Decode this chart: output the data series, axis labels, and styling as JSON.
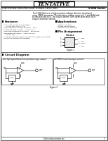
{
  "bg_color": "#ffffff",
  "header_box_text": "TENTATIVE",
  "top_left_text": "LOW-VOLTAGE HIGH-PRECISION VOLTAGE DETECTORS",
  "top_right_text": "S-808 Series",
  "body_text_lines": [
    "The S-808 Series is a high-precision voltage detector developed",
    "using CMOS processes. The detection voltage range is 1.2 and 3.0V with",
    "an accuracy of ±2%. The output format, N-ch open-drain and CMOS",
    "output, and more details."
  ],
  "features_title": "Features",
  "features": [
    "• Ultra-low current consumption",
    "      1.5 μA typ. (VDD= 5 V)",
    "• High detection voltage accuracy   ±2%",
    "• Low operating voltage    1.5 to 5.5 V",
    "• Hysteresis detection function    50 ms typ.",
    "• Detection hysteresis    0.05 to 0.15 V",
    "      50 mV typ.",
    "• Slow deterioration with low and CMOS with low output",
    "• SOT-23-5 component package"
  ],
  "appl_title": "Applications",
  "appl": [
    "• Battery checker",
    "• Power-fail detection",
    "• Supply line monitoring"
  ],
  "pin_title": "Pin Assignment",
  "pin_pkg": "SOT-23-5",
  "pin_top": "Top view",
  "pin_labels_right": [
    "1 VDD",
    "2 VSS",
    "3 VOUT",
    "4 VSS"
  ],
  "figure1_label": "Figure 1",
  "circuit_title": "Circuit Diagram",
  "circuit_a_title": "(a) High-speed detection precision type output",
  "circuit_b_title": "(b) CMOS reset low type control",
  "figure2_label": "Figure 2",
  "footer_text": "Seiko Instruments Inc.",
  "page_num": "1"
}
